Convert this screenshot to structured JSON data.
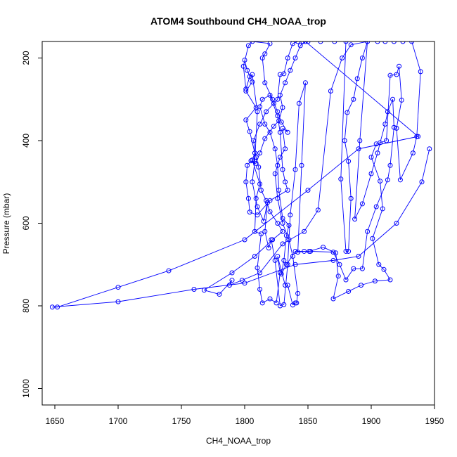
{
  "chart_data": {
    "type": "line",
    "title": "ATOM4 Southbound CH4_NOAA_trop",
    "xlabel": "CH4_NOAA_trop",
    "ylabel": "Pressure (mbar)",
    "xlim": [
      1640,
      1950
    ],
    "ylim": [
      1040,
      160
    ],
    "y_reversed": true,
    "x_ticks": [
      1650,
      1700,
      1750,
      1800,
      1850,
      1900,
      1950
    ],
    "y_ticks": [
      200,
      400,
      600,
      800,
      1000
    ],
    "grid": false,
    "legend": "none",
    "markers": "open-circle",
    "series_color": "#0000ff",
    "series": [
      {
        "points": [
          [
            1800,
            205
          ],
          [
            1802,
            230
          ],
          [
            1806,
            258
          ],
          [
            1801,
            280
          ],
          [
            1809,
            320
          ],
          [
            1801,
            350
          ],
          [
            1804,
            378
          ],
          [
            1808,
            430
          ],
          [
            1806,
            447
          ],
          [
            1812,
            505
          ],
          [
            1809,
            540
          ],
          [
            1808,
            620
          ],
          [
            1813,
            626
          ],
          [
            1810,
            708
          ],
          [
            1812,
            760
          ],
          [
            1814,
            793
          ],
          [
            1820,
            783
          ],
          [
            1825,
            793
          ],
          [
            1828,
            720
          ],
          [
            1826,
            680
          ],
          [
            1832,
            750
          ],
          [
            1834,
            750
          ],
          [
            1838,
            798
          ],
          [
            1840,
            793
          ],
          [
            1841,
            793
          ],
          [
            1842,
            770
          ],
          [
            1838,
            680
          ],
          [
            1835,
            640
          ],
          [
            1830,
            600
          ],
          [
            1826,
            540
          ],
          [
            1824,
            480
          ],
          [
            1828,
            440
          ],
          [
            1832,
            420
          ],
          [
            1830,
            370
          ],
          [
            1834,
            380
          ],
          [
            1829,
            355
          ],
          [
            1826,
            330
          ],
          [
            1822,
            300
          ],
          [
            1816,
            260
          ],
          [
            1814,
            200
          ],
          [
            1816,
            190
          ],
          [
            1820,
            165
          ],
          [
            1806,
            160
          ],
          [
            1803,
            170
          ],
          [
            1799,
            220
          ],
          [
            1801,
            275
          ],
          [
            1804,
            245
          ],
          [
            1806,
            240
          ],
          [
            1810,
            330
          ],
          [
            1808,
            450
          ],
          [
            1806,
            500
          ],
          [
            1810,
            560
          ],
          [
            1815,
            595
          ],
          [
            1818,
            550
          ],
          [
            1816,
            620
          ],
          [
            1819,
            660
          ],
          [
            1821,
            640
          ],
          [
            1824,
            690
          ],
          [
            1828,
            800
          ],
          [
            1831,
            797
          ],
          [
            1834,
            700
          ],
          [
            1836,
            580
          ],
          [
            1840,
            470
          ],
          [
            1843,
            310
          ],
          [
            1848,
            260
          ],
          [
            1845,
            460
          ],
          [
            1842,
            670
          ],
          [
            1847,
            668
          ],
          [
            1851,
            668
          ],
          [
            1862,
            658
          ],
          [
            1872,
            672
          ],
          [
            1874,
            728
          ],
          [
            1870,
            783
          ],
          [
            1882,
            765
          ],
          [
            1892,
            750
          ],
          [
            1903,
            740
          ],
          [
            1915,
            737
          ],
          [
            1910,
            712
          ],
          [
            1906,
            700
          ],
          [
            1901,
            637
          ],
          [
            1909,
            565
          ],
          [
            1907,
            498
          ],
          [
            1900,
            440
          ],
          [
            1904,
            408
          ],
          [
            1912,
            400
          ],
          [
            1915,
            242
          ],
          [
            1920,
            240
          ],
          [
            1922,
            220
          ],
          [
            1924,
            302
          ],
          [
            1920,
            370
          ],
          [
            1923,
            495
          ],
          [
            1933,
            430
          ],
          [
            1936,
            390
          ],
          [
            1939,
            233
          ],
          [
            1932,
            160
          ],
          [
            1925,
            160
          ],
          [
            1918,
            160
          ],
          [
            1911,
            160
          ],
          [
            1905,
            160
          ],
          [
            1897,
            160
          ],
          [
            1884,
            168
          ],
          [
            1877,
            200
          ],
          [
            1868,
            280
          ],
          [
            1858,
            568
          ],
          [
            1847,
            620
          ],
          [
            1830,
            650
          ],
          [
            1812,
            720
          ],
          [
            1798,
            738
          ],
          [
            1788,
            750
          ],
          [
            1790,
            738
          ],
          [
            1780,
            772
          ],
          [
            1768,
            762
          ],
          [
            1790,
            720
          ],
          [
            1808,
            680
          ],
          [
            1822,
            640
          ],
          [
            1830,
            620
          ],
          [
            1826,
            600
          ],
          [
            1820,
            572
          ],
          [
            1817,
            545
          ],
          [
            1813,
            520
          ],
          [
            1811,
            464
          ],
          [
            1809,
            440
          ],
          [
            1807,
            400
          ],
          [
            1812,
            360
          ],
          [
            1817,
            330
          ],
          [
            1823,
            310
          ],
          [
            1826,
            300
          ],
          [
            1828,
            240
          ],
          [
            1831,
            238
          ],
          [
            1834,
            200
          ],
          [
            1838,
            165
          ],
          [
            1842,
            160
          ],
          [
            1846,
            160
          ],
          [
            1850,
            160
          ],
          [
            1860,
            160
          ],
          [
            1871,
            160
          ],
          [
            1880,
            160
          ],
          [
            1876,
            493
          ],
          [
            1880,
            668
          ],
          [
            1882,
            668
          ],
          [
            1884,
            540
          ],
          [
            1882,
            450
          ],
          [
            1879,
            400
          ],
          [
            1881,
            332
          ],
          [
            1886,
            300
          ],
          [
            1889,
            250
          ],
          [
            1893,
            200
          ],
          [
            1897,
            160
          ],
          [
            1891,
            400
          ],
          [
            1887,
            590
          ],
          [
            1893,
            553
          ],
          [
            1900,
            480
          ],
          [
            1905,
            430
          ],
          [
            1907,
            405
          ],
          [
            1911,
            360
          ],
          [
            1913,
            330
          ],
          [
            1917,
            300
          ],
          [
            1918,
            368
          ],
          [
            1915,
            460
          ],
          [
            1913,
            495
          ],
          [
            1904,
            560
          ],
          [
            1897,
            620
          ],
          [
            1893,
            710
          ],
          [
            1886,
            710
          ],
          [
            1880,
            737
          ],
          [
            1875,
            700
          ],
          [
            1870,
            670
          ],
          [
            1852,
            668
          ],
          [
            1840,
            668
          ],
          [
            1833,
            700
          ],
          [
            1829,
            723
          ],
          [
            1831,
            690
          ],
          [
            1833,
            630
          ],
          [
            1835,
            605
          ],
          [
            1830,
            588
          ],
          [
            1827,
            520
          ],
          [
            1826,
            460
          ],
          [
            1824,
            420
          ],
          [
            1820,
            380
          ],
          [
            1816,
            360
          ],
          [
            1812,
            318
          ],
          [
            1814,
            300
          ],
          [
            1820,
            290
          ],
          [
            1826,
            340
          ],
          [
            1828,
            380
          ],
          [
            1830,
            470
          ],
          [
            1832,
            500
          ],
          [
            1834,
            520
          ],
          [
            1820,
            545
          ],
          [
            1810,
            580
          ],
          [
            1804,
            573
          ],
          [
            1803,
            540
          ],
          [
            1801,
            500
          ],
          [
            1802,
            460
          ],
          [
            1805,
            449
          ],
          [
            1809,
            455
          ],
          [
            1812,
            430
          ],
          [
            1816,
            395
          ],
          [
            1823,
            365
          ],
          [
            1827,
            352
          ],
          [
            1830,
            320
          ],
          [
            1828,
            290
          ],
          [
            1832,
            260
          ],
          [
            1836,
            230
          ],
          [
            1840,
            200
          ],
          [
            1844,
            170
          ],
          [
            1848,
            160
          ],
          [
            1937,
            390
          ],
          [
            1890,
            420
          ],
          [
            1850,
            520
          ],
          [
            1800,
            640
          ],
          [
            1740,
            715
          ],
          [
            1700,
            755
          ],
          [
            1652,
            803
          ],
          [
            1648,
            803
          ],
          [
            1700,
            790
          ],
          [
            1760,
            760
          ],
          [
            1800,
            745
          ],
          [
            1840,
            700
          ],
          [
            1870,
            690
          ],
          [
            1890,
            680
          ],
          [
            1920,
            600
          ],
          [
            1940,
            500
          ],
          [
            1946,
            420
          ]
        ]
      }
    ]
  }
}
